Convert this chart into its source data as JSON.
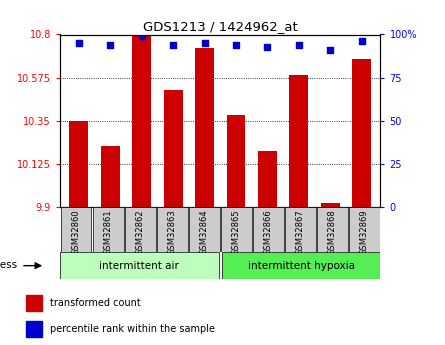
{
  "title": "GDS1213 / 1424962_at",
  "samples": [
    "GSM32860",
    "GSM32861",
    "GSM32862",
    "GSM32863",
    "GSM32864",
    "GSM32865",
    "GSM32866",
    "GSM32867",
    "GSM32868",
    "GSM32869"
  ],
  "bar_values": [
    10.35,
    10.22,
    10.8,
    10.51,
    10.73,
    10.38,
    10.19,
    10.59,
    9.92,
    10.67
  ],
  "percentile_values": [
    95,
    94,
    99,
    94,
    95,
    94,
    93,
    94,
    91,
    96
  ],
  "bar_color": "#cc0000",
  "percentile_color": "#0000cc",
  "ymin": 9.9,
  "ymax": 10.8,
  "y_ticks": [
    9.9,
    10.125,
    10.35,
    10.575,
    10.8
  ],
  "y_tick_labels": [
    "9.9",
    "10.125",
    "10.35",
    "10.575",
    "10.8"
  ],
  "right_y_ticks": [
    0,
    25,
    50,
    75,
    100
  ],
  "right_y_labels": [
    "0",
    "25",
    "50",
    "75",
    "100%"
  ],
  "group1_label": "intermittent air",
  "group2_label": "intermittent hypoxia",
  "group1_color": "#bbffbb",
  "group2_color": "#55ee55",
  "stress_label": "stress",
  "legend1": "transformed count",
  "legend2": "percentile rank within the sample",
  "bg_color": "#ffffff",
  "grid_color": "#000000",
  "tick_label_bg": "#cccccc"
}
